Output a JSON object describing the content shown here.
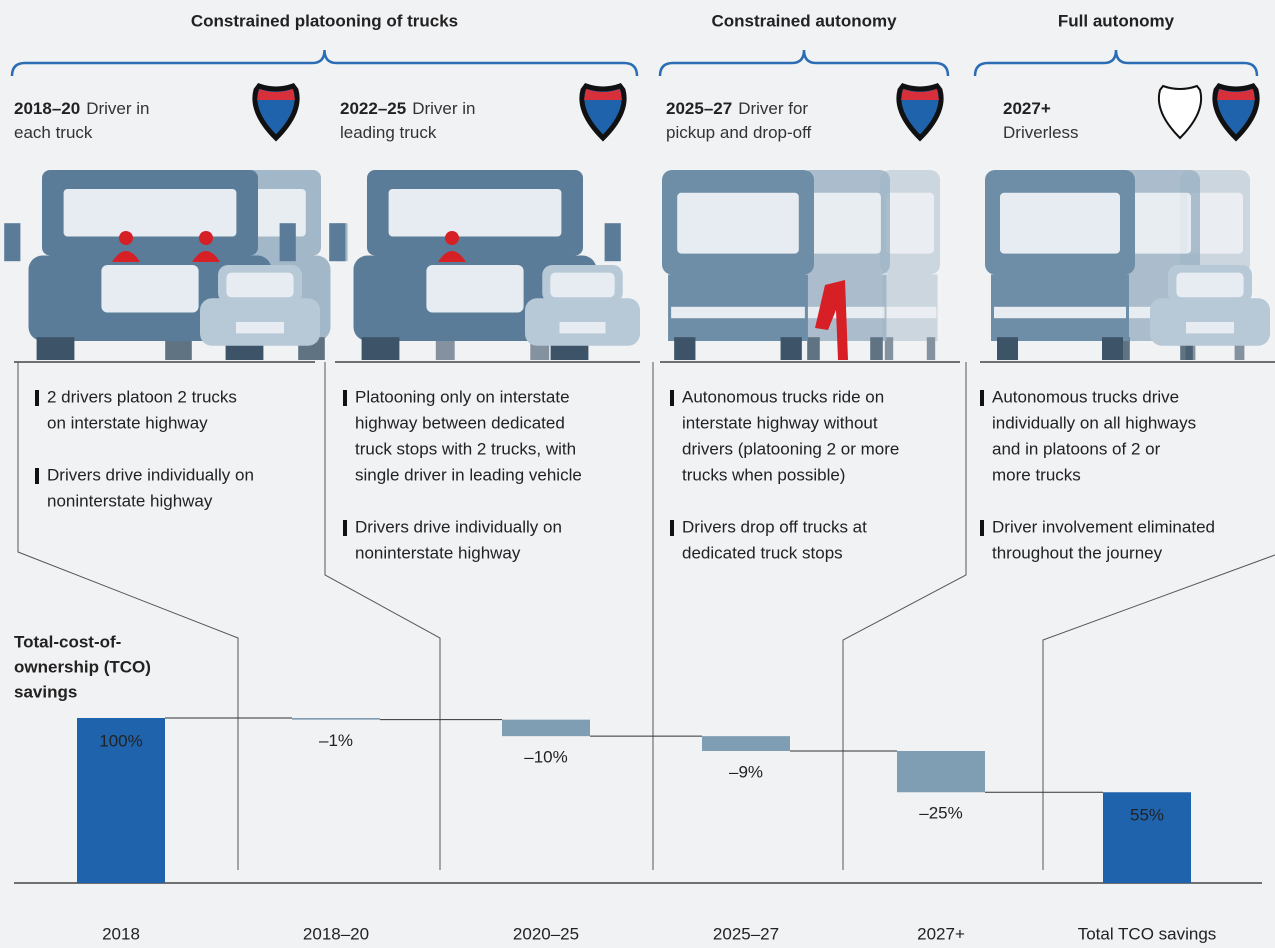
{
  "groups": [
    {
      "label": "Constrained platooning of trucks"
    },
    {
      "label": "Constrained autonomy"
    },
    {
      "label": "Full autonomy"
    }
  ],
  "phases": [
    {
      "heading": [
        {
          "bold": "2018–20",
          "text": "Driver in"
        },
        {
          "text": "each truck"
        }
      ],
      "bullets": [
        [
          "2 drivers platoon 2 trucks",
          "on interstate highway"
        ],
        [
          "Drivers drive individually on",
          "noninterstate highway"
        ]
      ]
    },
    {
      "heading": [
        {
          "bold": "2022–25",
          "text": "Driver in"
        },
        {
          "text": "leading truck"
        }
      ],
      "bullets": [
        [
          "Platooning only on interstate",
          "highway between dedicated",
          "truck stops with 2 trucks, with",
          "single driver in leading vehicle"
        ],
        [
          "Drivers drive individually on",
          "noninterstate highway"
        ]
      ]
    },
    {
      "heading": [
        {
          "bold": "2025–27",
          "text": "Driver for"
        },
        {
          "text": "pickup and drop-off"
        }
      ],
      "bullets": [
        [
          "Autonomous trucks ride on",
          "interstate highway without",
          "drivers (platooning 2 or more",
          "trucks when possible)"
        ],
        [
          "Drivers drop off trucks at",
          "dedicated truck stops"
        ]
      ]
    },
    {
      "heading": [
        {
          "bold": "2027+"
        },
        {
          "text": "Driverless"
        }
      ],
      "bullets": [
        [
          "Autonomous trucks drive",
          "individually on all highways",
          "and in platoons of 2 or",
          "more trucks"
        ],
        [
          "Driver involvement eliminated",
          "throughout the journey"
        ]
      ]
    }
  ],
  "chart_data": {
    "type": "waterfall",
    "title": [
      "Total-cost-of-",
      "ownership (TCO)",
      "savings"
    ],
    "categories": [
      "2018",
      "2018–20",
      "2020–25",
      "2025–27",
      "2027+",
      "Total TCO savings"
    ],
    "values": [
      100,
      -1,
      -10,
      -9,
      -25,
      55
    ],
    "value_labels": [
      "100%",
      "–1%",
      "–10%",
      "–9%",
      "–25%",
      "55%"
    ],
    "total_color": "#1f63ad",
    "color": "#7f9db3"
  }
}
